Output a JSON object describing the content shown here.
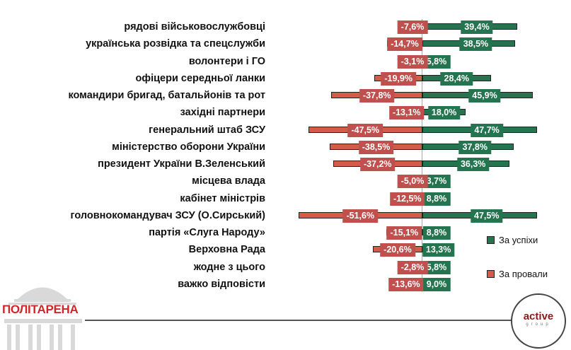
{
  "chart_data": {
    "type": "bar",
    "orientation": "horizontal-diverging",
    "categories": [
      "рядові військовослужбовці",
      "українська розвідка та спецслужби",
      "волонтери і ГО",
      "офіцери середньої ланки",
      "командири бригад, батальйонів та рот",
      "західні партнери",
      "генеральний штаб ЗСУ",
      "міністерство оборони України",
      "президент України В.Зеленський",
      "місцева влада",
      "кабінет міністрів",
      "головнокомандувач ЗСУ (О.Сирський)",
      "партія «Слуга Народу»",
      "Верховна Рада",
      "жодне з цього",
      "важко відповісти"
    ],
    "series": [
      {
        "name": "За успіхи",
        "color": "#24744f",
        "values": [
          39.4,
          38.5,
          5.8,
          28.4,
          45.9,
          18.0,
          47.7,
          37.8,
          36.3,
          3.7,
          8.8,
          47.5,
          8.8,
          13.3,
          5.8,
          9.0
        ],
        "labels": [
          "39,4%",
          "38,5%",
          "5,8%",
          "28,4%",
          "45,9%",
          "18,0%",
          "47,7%",
          "37,8%",
          "36,3%",
          "3,7%",
          "8,8%",
          "47,5%",
          "8,8%",
          "13,3%",
          "5,8%",
          "9,0%"
        ]
      },
      {
        "name": "За провали",
        "color": "#d35b47",
        "values": [
          -7.6,
          -14.7,
          -3.1,
          -19.9,
          -37.8,
          -13.1,
          -47.5,
          -38.5,
          -37.2,
          -5.0,
          -12.5,
          -51.6,
          -15.1,
          -20.6,
          -2.8,
          -13.6
        ],
        "labels": [
          "-7,6%",
          "-14,7%",
          "-3,1%",
          "-19,9%",
          "-37,8%",
          "-13,1%",
          "-47,5%",
          "-38,5%",
          "-37,2%",
          "-5,0%",
          "-12,5%",
          "-51,6%",
          "-15,1%",
          "-20,6%",
          "-2,8%",
          "-13,6%"
        ]
      }
    ],
    "legend": "right",
    "grid": false
  },
  "logos": {
    "left": "ПОЛІТАРЕНА",
    "right_main": "active",
    "right_sub": "group"
  }
}
